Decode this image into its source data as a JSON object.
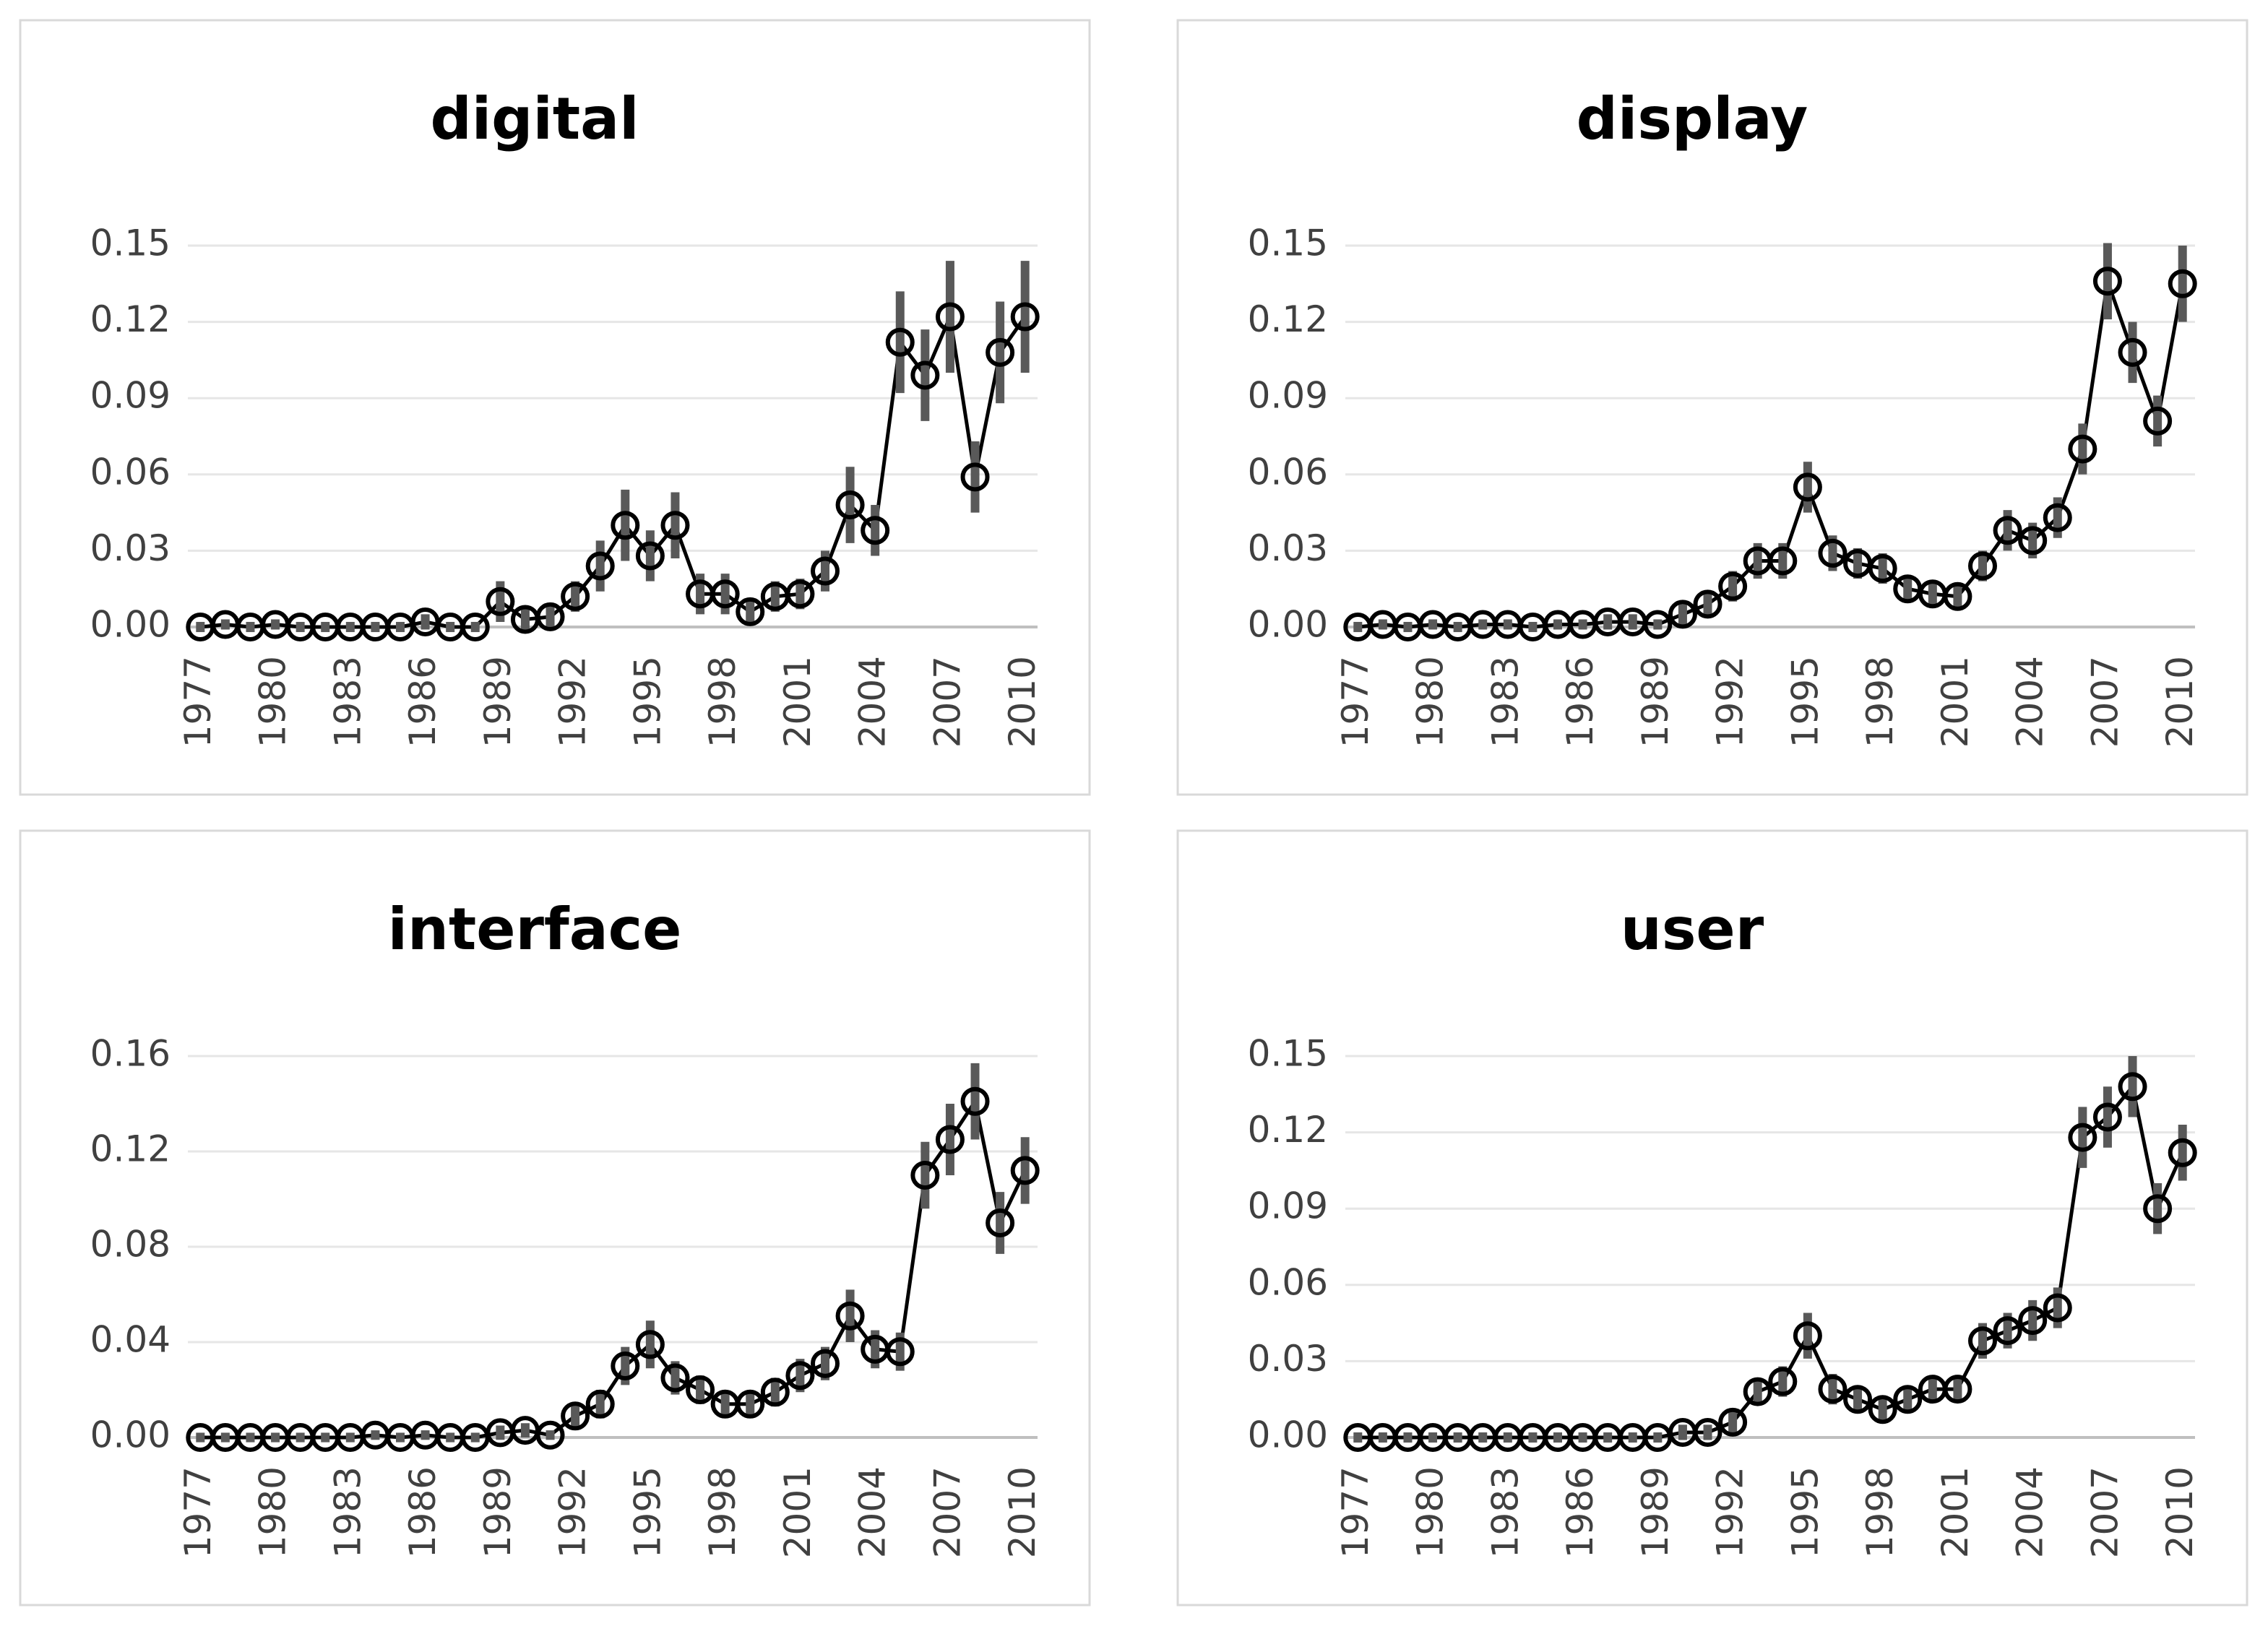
{
  "chart_data": [
    {
      "type": "line",
      "title": "digital",
      "color": "#000000",
      "error_color": "#595959",
      "grid": true,
      "x": [
        1977,
        1978,
        1979,
        1980,
        1981,
        1982,
        1983,
        1984,
        1985,
        1986,
        1987,
        1988,
        1989,
        1990,
        1991,
        1992,
        1993,
        1994,
        1995,
        1996,
        1997,
        1998,
        1999,
        2000,
        2001,
        2002,
        2003,
        2004,
        2005,
        2006,
        2007,
        2008,
        2009,
        2010
      ],
      "values": [
        0,
        0.001,
        0,
        0.001,
        0,
        0,
        0,
        0,
        0,
        0.002,
        0,
        0,
        0.01,
        0.003,
        0.004,
        0.012,
        0.024,
        0.04,
        0.028,
        0.04,
        0.013,
        0.013,
        0.006,
        0.012,
        0.013,
        0.022,
        0.048,
        0.038,
        0.112,
        0.099,
        0.122,
        0.059,
        0.108,
        0.122
      ],
      "errors": [
        0.002,
        0.002,
        0.002,
        0.002,
        0.002,
        0.002,
        0.002,
        0.002,
        0.002,
        0.003,
        0.002,
        0.002,
        0.008,
        0.004,
        0.004,
        0.006,
        0.01,
        0.014,
        0.01,
        0.013,
        0.008,
        0.008,
        0.005,
        0.006,
        0.006,
        0.008,
        0.015,
        0.01,
        0.02,
        0.018,
        0.022,
        0.014,
        0.02,
        0.022
      ],
      "xlim": [
        1976.5,
        2010.5
      ],
      "xticks": [
        1977,
        1980,
        1983,
        1986,
        1989,
        1992,
        1995,
        1998,
        2001,
        2004,
        2007,
        2010
      ],
      "ylim": [
        0,
        0.15
      ],
      "yticks": [
        {
          "value": 0,
          "label": "0.00"
        },
        {
          "value": 0.03,
          "label": "0.03"
        },
        {
          "value": 0.06,
          "label": "0.06"
        },
        {
          "value": 0.09,
          "label": "0.09"
        },
        {
          "value": 0.12,
          "label": "0.12"
        },
        {
          "value": 0.15,
          "label": "0.15"
        }
      ]
    },
    {
      "type": "line",
      "title": "display",
      "color": "#000000",
      "error_color": "#595959",
      "grid": true,
      "x": [
        1977,
        1978,
        1979,
        1980,
        1981,
        1982,
        1983,
        1984,
        1985,
        1986,
        1987,
        1988,
        1989,
        1990,
        1991,
        1992,
        1993,
        1994,
        1995,
        1996,
        1997,
        1998,
        1999,
        2000,
        2001,
        2002,
        2003,
        2004,
        2005,
        2006,
        2007,
        2008,
        2009,
        2010
      ],
      "values": [
        0,
        0.001,
        0,
        0.001,
        0,
        0.001,
        0.001,
        0,
        0.001,
        0.001,
        0.002,
        0.002,
        0.001,
        0.005,
        0.009,
        0.016,
        0.026,
        0.026,
        0.055,
        0.029,
        0.025,
        0.023,
        0.015,
        0.013,
        0.012,
        0.024,
        0.038,
        0.034,
        0.043,
        0.07,
        0.136,
        0.108,
        0.081,
        0.135
      ],
      "errors": [
        0.002,
        0.002,
        0.002,
        0.002,
        0.002,
        0.002,
        0.002,
        0.002,
        0.002,
        0.002,
        0.003,
        0.003,
        0.002,
        0.004,
        0.005,
        0.006,
        0.007,
        0.007,
        0.01,
        0.007,
        0.006,
        0.006,
        0.005,
        0.005,
        0.005,
        0.006,
        0.008,
        0.007,
        0.008,
        0.01,
        0.015,
        0.012,
        0.01,
        0.015
      ],
      "xlim": [
        1976.5,
        2010.5
      ],
      "xticks": [
        1977,
        1980,
        1983,
        1986,
        1989,
        1992,
        1995,
        1998,
        2001,
        2004,
        2007,
        2010
      ],
      "ylim": [
        0,
        0.15
      ],
      "yticks": [
        {
          "value": 0,
          "label": "0.00"
        },
        {
          "value": 0.03,
          "label": "0.03"
        },
        {
          "value": 0.06,
          "label": "0.06"
        },
        {
          "value": 0.09,
          "label": "0.09"
        },
        {
          "value": 0.12,
          "label": "0.12"
        },
        {
          "value": 0.15,
          "label": "0.15"
        }
      ]
    },
    {
      "type": "line",
      "title": "interface",
      "color": "#000000",
      "error_color": "#595959",
      "grid": true,
      "x": [
        1977,
        1978,
        1979,
        1980,
        1981,
        1982,
        1983,
        1984,
        1985,
        1986,
        1987,
        1988,
        1989,
        1990,
        1991,
        1992,
        1993,
        1994,
        1995,
        1996,
        1997,
        1998,
        1999,
        2000,
        2001,
        2002,
        2003,
        2004,
        2005,
        2006,
        2007,
        2008,
        2009,
        2010
      ],
      "values": [
        0,
        0,
        0,
        0,
        0,
        0,
        0,
        0.001,
        0,
        0.001,
        0,
        0,
        0.002,
        0.003,
        0.001,
        0.009,
        0.014,
        0.03,
        0.039,
        0.025,
        0.02,
        0.014,
        0.014,
        0.019,
        0.026,
        0.031,
        0.051,
        0.037,
        0.036,
        0.11,
        0.125,
        0.141,
        0.09,
        0.112
      ],
      "errors": [
        0.002,
        0.002,
        0.002,
        0.002,
        0.002,
        0.002,
        0.002,
        0.002,
        0.002,
        0.002,
        0.002,
        0.002,
        0.003,
        0.003,
        0.002,
        0.005,
        0.006,
        0.008,
        0.01,
        0.007,
        0.006,
        0.005,
        0.005,
        0.006,
        0.007,
        0.007,
        0.011,
        0.008,
        0.008,
        0.014,
        0.015,
        0.016,
        0.013,
        0.014
      ],
      "xlim": [
        1976.5,
        2010.5
      ],
      "xticks": [
        1977,
        1980,
        1983,
        1986,
        1989,
        1992,
        1995,
        1998,
        2001,
        2004,
        2007,
        2010
      ],
      "ylim": [
        0,
        0.16
      ],
      "yticks": [
        {
          "value": 0,
          "label": "0.00"
        },
        {
          "value": 0.04,
          "label": "0.04"
        },
        {
          "value": 0.08,
          "label": "0.08"
        },
        {
          "value": 0.12,
          "label": "0.12"
        },
        {
          "value": 0.16,
          "label": "0.16"
        }
      ]
    },
    {
      "type": "line",
      "title": "user",
      "color": "#000000",
      "error_color": "#595959",
      "grid": true,
      "x": [
        1977,
        1978,
        1979,
        1980,
        1981,
        1982,
        1983,
        1984,
        1985,
        1986,
        1987,
        1988,
        1989,
        1990,
        1991,
        1992,
        1993,
        1994,
        1995,
        1996,
        1997,
        1998,
        1999,
        2000,
        2001,
        2002,
        2003,
        2004,
        2005,
        2006,
        2007,
        2008,
        2009,
        2010
      ],
      "values": [
        0,
        0,
        0,
        0,
        0,
        0,
        0,
        0,
        0,
        0,
        0,
        0,
        0,
        0.002,
        0.002,
        0.006,
        0.018,
        0.022,
        0.04,
        0.019,
        0.015,
        0.011,
        0.015,
        0.019,
        0.019,
        0.038,
        0.042,
        0.046,
        0.051,
        0.118,
        0.126,
        0.138,
        0.09,
        0.112
      ],
      "errors": [
        0.002,
        0.002,
        0.002,
        0.002,
        0.002,
        0.002,
        0.002,
        0.002,
        0.002,
        0.002,
        0.002,
        0.002,
        0.002,
        0.003,
        0.003,
        0.004,
        0.005,
        0.006,
        0.009,
        0.006,
        0.005,
        0.004,
        0.005,
        0.005,
        0.005,
        0.007,
        0.007,
        0.008,
        0.008,
        0.012,
        0.012,
        0.012,
        0.01,
        0.011
      ],
      "xlim": [
        1976.5,
        2010.5
      ],
      "xticks": [
        1977,
        1980,
        1983,
        1986,
        1989,
        1992,
        1995,
        1998,
        2001,
        2004,
        2007,
        2010
      ],
      "ylim": [
        0,
        0.15
      ],
      "yticks": [
        {
          "value": 0,
          "label": "0.00"
        },
        {
          "value": 0.03,
          "label": "0.03"
        },
        {
          "value": 0.06,
          "label": "0.06"
        },
        {
          "value": 0.09,
          "label": "0.09"
        },
        {
          "value": 0.12,
          "label": "0.12"
        },
        {
          "value": 0.15,
          "label": "0.15"
        }
      ]
    }
  ]
}
